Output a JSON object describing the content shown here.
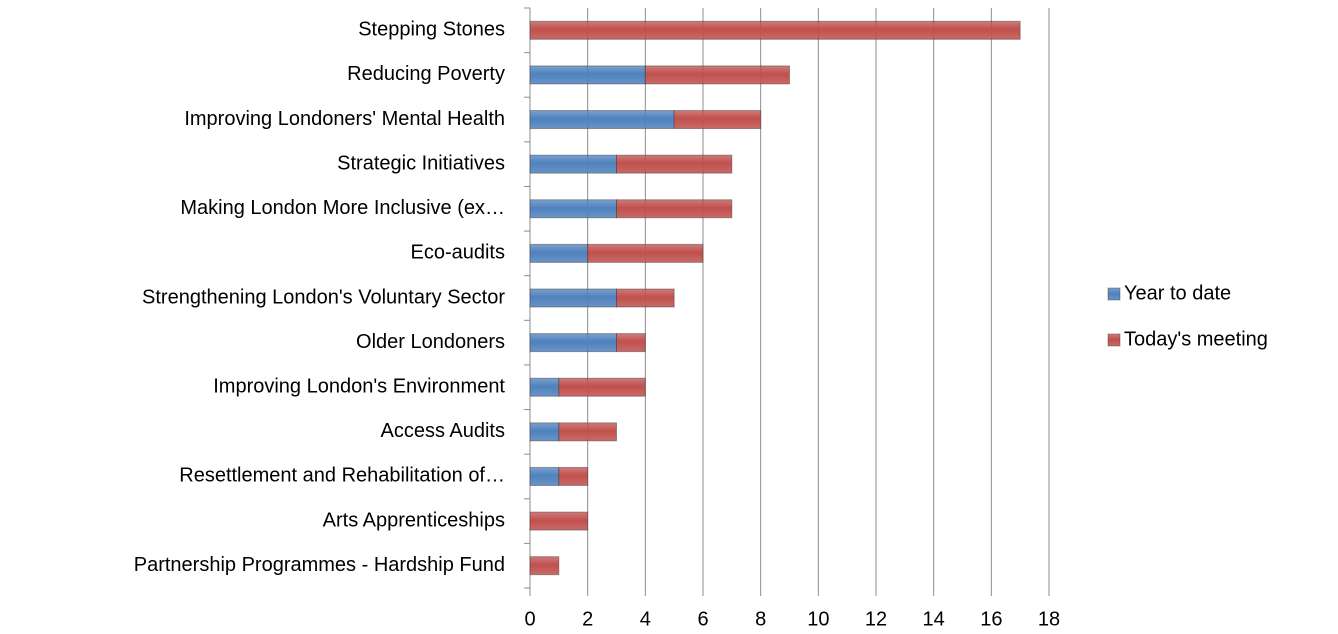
{
  "chart_data": {
    "type": "stacked-bar",
    "orientation": "horizontal",
    "categories": [
      "Stepping Stones",
      "Reducing Poverty",
      "Improving Londoners' Mental Health",
      "Strategic Initiatives",
      "Making London More Inclusive (ex…",
      "Eco-audits",
      "Strengthening London's Voluntary Sector",
      "Older Londoners",
      "Improving London's Environment",
      "Access Audits",
      "Resettlement and Rehabilitation of…",
      "Arts Apprenticeships",
      "Partnership Programmes - Hardship Fund"
    ],
    "series": [
      {
        "name": "Year to date",
        "color": "#4f81bd",
        "values": [
          0,
          4,
          5,
          3,
          3,
          2,
          3,
          3,
          1,
          1,
          1,
          0,
          0
        ]
      },
      {
        "name": "Today's meeting",
        "color": "#c0504d",
        "values": [
          17,
          5,
          3,
          4,
          4,
          4,
          2,
          1,
          3,
          2,
          1,
          2,
          1
        ]
      }
    ],
    "xlim": [
      0,
      18
    ],
    "xticks": [
      0,
      2,
      4,
      6,
      8,
      10,
      12,
      14,
      16,
      18
    ],
    "grid": true,
    "legend": "right"
  }
}
